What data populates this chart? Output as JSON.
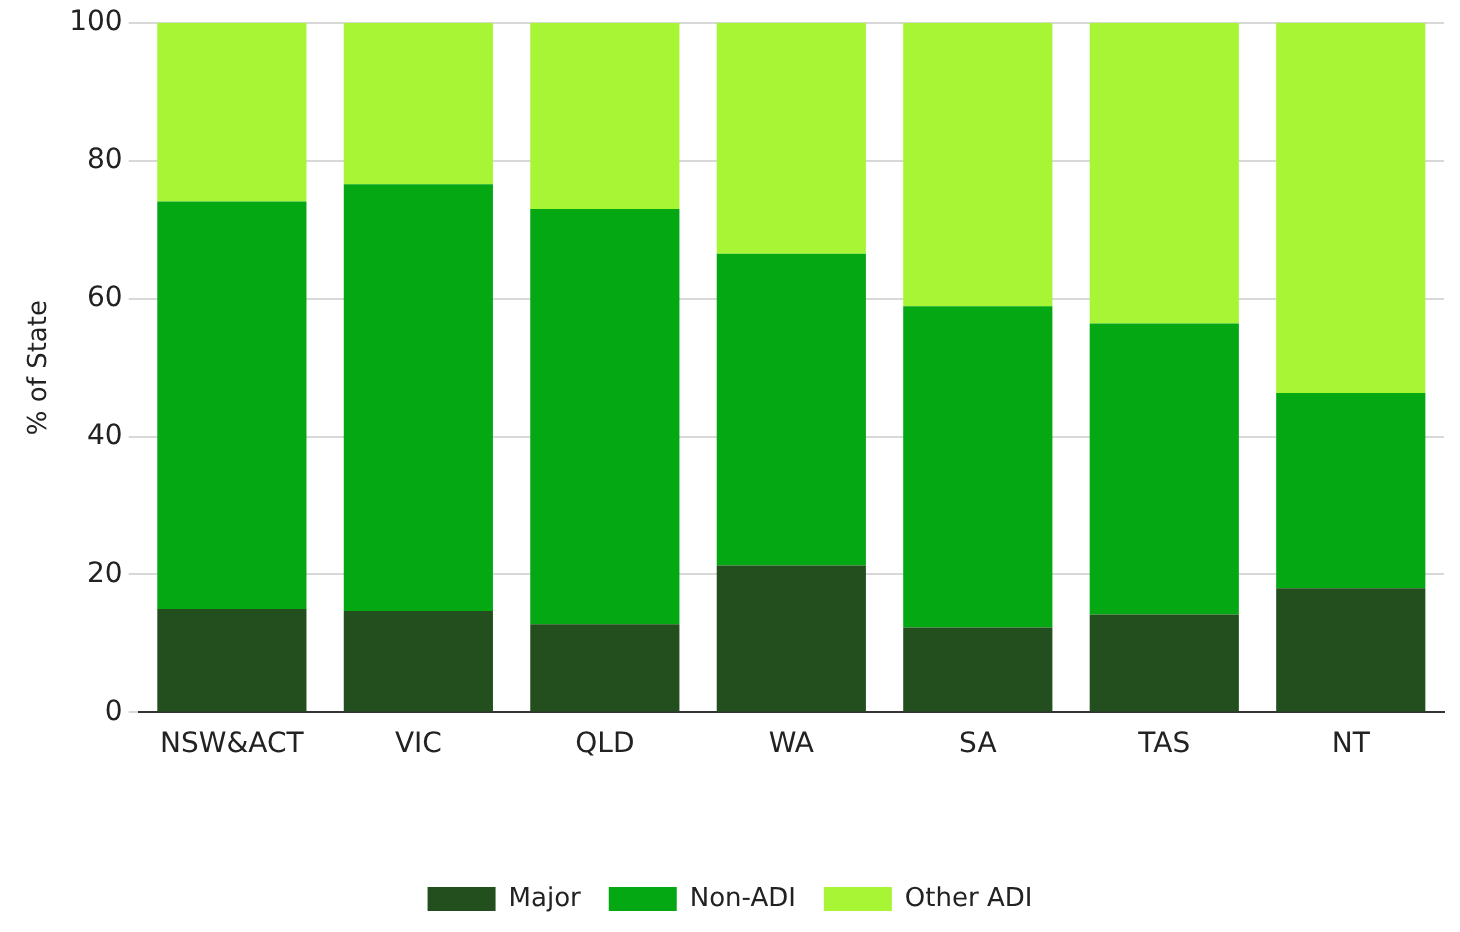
{
  "chart_data": {
    "type": "bar",
    "stacked": true,
    "ylabel": "% of State",
    "categories": [
      "NSW&ACT",
      "VIC",
      "QLD",
      "WA",
      "SA",
      "TAS",
      "NT"
    ],
    "series": [
      {
        "name": "Major",
        "color": "#234f1e",
        "values": [
          15.0,
          14.7,
          12.8,
          21.3,
          12.3,
          14.2,
          18.0
        ]
      },
      {
        "name": "Non-ADI",
        "color": "#03a813",
        "values": [
          59.1,
          61.9,
          60.2,
          45.2,
          46.6,
          42.2,
          28.3
        ]
      },
      {
        "name": "Other ADI",
        "color": "#a8f536",
        "values": [
          25.9,
          23.4,
          27.0,
          33.5,
          41.1,
          43.6,
          53.7
        ]
      }
    ],
    "ylim": [
      0,
      100
    ],
    "yticks": [
      0,
      20,
      40,
      60,
      80,
      100
    ],
    "grid": "y",
    "legend": "bottom"
  }
}
